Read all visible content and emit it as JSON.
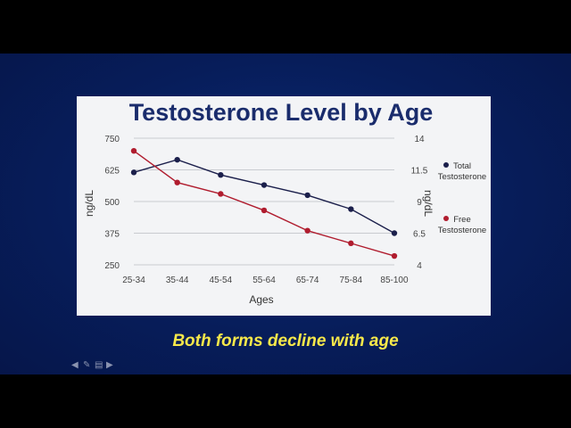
{
  "caption": "Both forms decline with age",
  "chart_data": {
    "type": "line",
    "title": "Testosterone Level by Age",
    "xlabel": "Ages",
    "ylabel": "ng/dL",
    "y2label": "ng/dL",
    "categories": [
      "25-34",
      "35-44",
      "45-54",
      "55-64",
      "65-74",
      "75-84",
      "85-100"
    ],
    "ylim": [
      250,
      750
    ],
    "yticks": [
      "250",
      "375",
      "500",
      "625",
      "750"
    ],
    "y2lim": [
      4,
      14
    ],
    "y2ticks": [
      "4",
      "6.5",
      "9",
      "11.5",
      "14"
    ],
    "grid": true,
    "legend": "right",
    "series": [
      {
        "name": "Total Testosterone",
        "axis": "left",
        "color": "#1b1f4b",
        "values": [
          615,
          665,
          605,
          565,
          525,
          470,
          375
        ]
      },
      {
        "name": "Free Testosterone",
        "axis": "right",
        "color": "#b01c2e",
        "values": [
          13.0,
          10.5,
          9.6,
          8.3,
          6.7,
          5.7,
          4.7
        ]
      }
    ]
  }
}
